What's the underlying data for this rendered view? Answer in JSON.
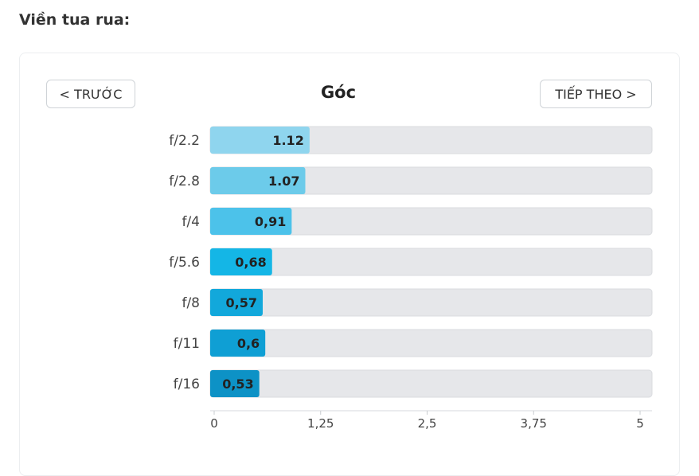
{
  "heading": "Viền tua rua:",
  "nav": {
    "prev_label": "< TRƯỚC",
    "next_label": "TIẾP THEO >"
  },
  "chart_data": {
    "type": "bar",
    "orientation": "horizontal",
    "title": "Góc",
    "categories": [
      "f/2.2",
      "f/2.8",
      "f/4",
      "f/5.6",
      "f/8",
      "f/11",
      "f/16"
    ],
    "values": [
      1.12,
      1.07,
      0.91,
      0.68,
      0.57,
      0.6,
      0.53
    ],
    "value_labels": [
      "1.12",
      "1.07",
      "0,91",
      "0,68",
      "0,57",
      "0,6",
      "0,53"
    ],
    "bar_colors": [
      "#8fd5ee",
      "#6ccbea",
      "#4cc2ea",
      "#14b6e6",
      "#12a8db",
      "#0f9fd4",
      "#0d92c6"
    ],
    "track_color": "#e6e7ea",
    "xlim": [
      0,
      5
    ],
    "xticks": [
      0,
      1.25,
      2.5,
      3.75,
      5
    ],
    "xtick_labels": [
      "0",
      "1,25",
      "2,5",
      "3,75",
      "5"
    ],
    "grid": false
  }
}
